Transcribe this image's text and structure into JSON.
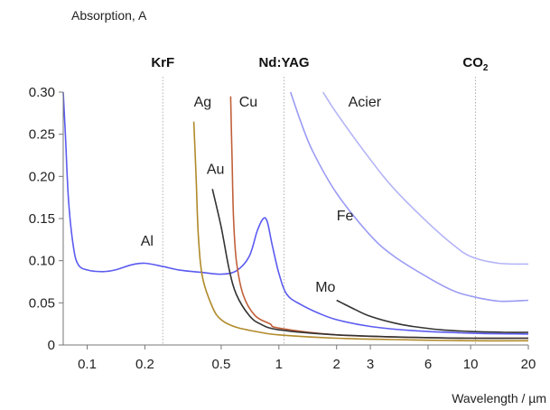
{
  "chart_data": {
    "type": "line",
    "ylabel": "Absorption, A",
    "xlabel": "Wavelength / µm",
    "x_scale": "log",
    "xlim": [
      0.075,
      20
    ],
    "ylim": [
      0,
      0.3
    ],
    "x_ticks": [
      {
        "value": 0.1,
        "label": "0.1"
      },
      {
        "value": 0.2,
        "label": "0.2"
      },
      {
        "value": 0.5,
        "label": "0.5"
      },
      {
        "value": 1,
        "label": "1"
      },
      {
        "value": 2,
        "label": "2"
      },
      {
        "value": 3,
        "label": "3"
      },
      {
        "value": 6,
        "label": "6"
      },
      {
        "value": 10,
        "label": "10"
      },
      {
        "value": 20,
        "label": "20"
      }
    ],
    "y_ticks": [
      {
        "value": 0,
        "label": "0"
      },
      {
        "value": 0.05,
        "label": "0.05"
      },
      {
        "value": 0.1,
        "label": "0.10"
      },
      {
        "value": 0.15,
        "label": "0.15"
      },
      {
        "value": 0.2,
        "label": "0.20"
      },
      {
        "value": 0.25,
        "label": "0.25"
      },
      {
        "value": 0.3,
        "label": "0.30"
      }
    ],
    "laser_lines": [
      {
        "name": "KrF",
        "x": 0.248
      },
      {
        "name": "Nd:YAG",
        "x": 1.064
      },
      {
        "name": "CO",
        "sub": "2",
        "x": 10.6
      }
    ],
    "series": [
      {
        "name": "Al",
        "color": "#5b5bf0",
        "label_at": [
          0.19,
          0.118
        ],
        "points": [
          [
            0.075,
            0.3
          ],
          [
            0.077,
            0.25
          ],
          [
            0.08,
            0.17
          ],
          [
            0.085,
            0.115
          ],
          [
            0.09,
            0.095
          ],
          [
            0.1,
            0.089
          ],
          [
            0.12,
            0.087
          ],
          [
            0.14,
            0.089
          ],
          [
            0.17,
            0.095
          ],
          [
            0.2,
            0.097
          ],
          [
            0.25,
            0.093
          ],
          [
            0.3,
            0.089
          ],
          [
            0.4,
            0.086
          ],
          [
            0.5,
            0.084
          ],
          [
            0.6,
            0.088
          ],
          [
            0.7,
            0.105
          ],
          [
            0.77,
            0.135
          ],
          [
            0.83,
            0.15
          ],
          [
            0.87,
            0.146
          ],
          [
            0.92,
            0.12
          ],
          [
            1.0,
            0.085
          ],
          [
            1.1,
            0.06
          ],
          [
            1.3,
            0.048
          ],
          [
            1.6,
            0.038
          ],
          [
            2,
            0.03
          ],
          [
            3,
            0.022
          ],
          [
            5,
            0.017
          ],
          [
            10,
            0.014
          ],
          [
            20,
            0.013
          ]
        ]
      },
      {
        "name": "Ag",
        "color": "#b08a2a",
        "label_at": [
          0.36,
          0.283
        ],
        "points": [
          [
            0.36,
            0.265
          ],
          [
            0.37,
            0.2
          ],
          [
            0.38,
            0.13
          ],
          [
            0.4,
            0.08
          ],
          [
            0.45,
            0.045
          ],
          [
            0.5,
            0.03
          ],
          [
            0.6,
            0.021
          ],
          [
            0.8,
            0.015
          ],
          [
            1,
            0.012
          ],
          [
            2,
            0.008
          ],
          [
            5,
            0.006
          ],
          [
            10,
            0.005
          ],
          [
            20,
            0.005
          ]
        ]
      },
      {
        "name": "Cu",
        "color": "#c0603a",
        "label_at": [
          0.62,
          0.283
        ],
        "points": [
          [
            0.56,
            0.295
          ],
          [
            0.57,
            0.22
          ],
          [
            0.58,
            0.15
          ],
          [
            0.6,
            0.1
          ],
          [
            0.65,
            0.06
          ],
          [
            0.75,
            0.035
          ],
          [
            0.9,
            0.025
          ],
          [
            1,
            0.02
          ],
          [
            2,
            0.012
          ],
          [
            5,
            0.009
          ],
          [
            10,
            0.008
          ],
          [
            20,
            0.008
          ]
        ]
      },
      {
        "name": "Au",
        "color": "#333333",
        "label_at": [
          0.42,
          0.203
        ],
        "points": [
          [
            0.45,
            0.185
          ],
          [
            0.5,
            0.14
          ],
          [
            0.55,
            0.09
          ],
          [
            0.6,
            0.06
          ],
          [
            0.7,
            0.035
          ],
          [
            0.8,
            0.025
          ],
          [
            1,
            0.018
          ],
          [
            2,
            0.012
          ],
          [
            5,
            0.009
          ],
          [
            10,
            0.008
          ],
          [
            20,
            0.008
          ]
        ]
      },
      {
        "name": "Mo",
        "color": "#333333",
        "label_at": [
          1.55,
          0.063
        ],
        "points": [
          [
            2.0,
            0.053
          ],
          [
            2.5,
            0.042
          ],
          [
            3,
            0.034
          ],
          [
            4,
            0.026
          ],
          [
            5,
            0.022
          ],
          [
            7,
            0.018
          ],
          [
            10,
            0.016
          ],
          [
            15,
            0.015
          ],
          [
            20,
            0.015
          ]
        ]
      },
      {
        "name": "Fe",
        "color": "#9b9bf5",
        "label_at": [
          2.0,
          0.148
        ],
        "points": [
          [
            1.15,
            0.3
          ],
          [
            1.3,
            0.265
          ],
          [
            1.5,
            0.23
          ],
          [
            2,
            0.18
          ],
          [
            3,
            0.13
          ],
          [
            4,
            0.105
          ],
          [
            6,
            0.08
          ],
          [
            8,
            0.065
          ],
          [
            10,
            0.058
          ],
          [
            14,
            0.052
          ],
          [
            20,
            0.053
          ]
        ]
      },
      {
        "name": "Acier",
        "color": "#b4b4f7",
        "label_at": [
          2.3,
          0.283
        ],
        "points": [
          [
            1.7,
            0.3
          ],
          [
            2,
            0.275
          ],
          [
            3,
            0.22
          ],
          [
            4,
            0.185
          ],
          [
            6,
            0.145
          ],
          [
            8,
            0.12
          ],
          [
            10,
            0.105
          ],
          [
            14,
            0.097
          ],
          [
            20,
            0.096
          ]
        ]
      }
    ]
  }
}
